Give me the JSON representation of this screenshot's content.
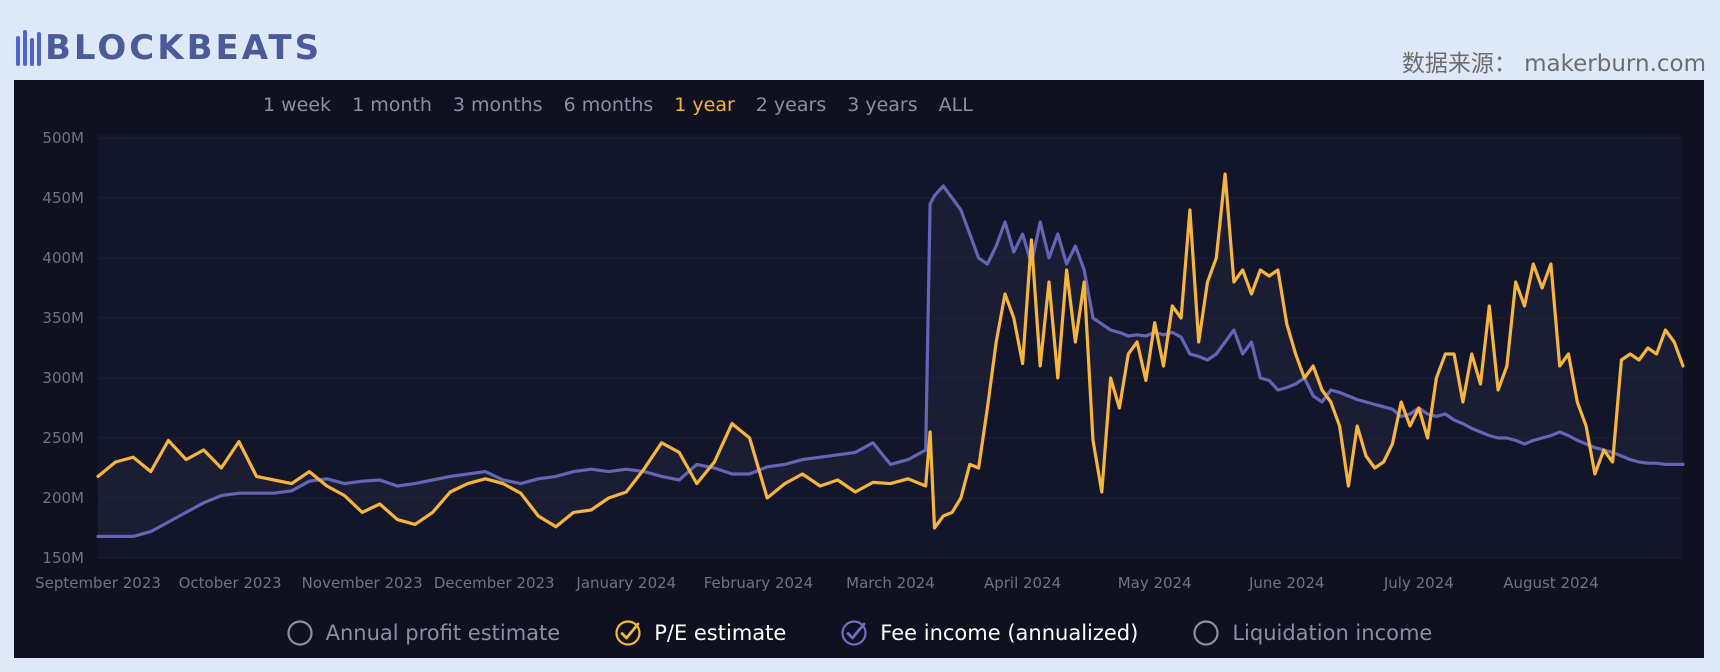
{
  "header": {
    "logo_text": "BLOCKBEATS",
    "source": "数据来源：  makerburn.com"
  },
  "ranges": [
    {
      "label": "1 week",
      "active": false
    },
    {
      "label": "1 month",
      "active": false
    },
    {
      "label": "3 months",
      "active": false
    },
    {
      "label": "6 months",
      "active": false
    },
    {
      "label": "1 year",
      "active": true
    },
    {
      "label": "2 years",
      "active": false
    },
    {
      "label": "3 years",
      "active": false
    },
    {
      "label": "ALL",
      "active": false
    }
  ],
  "legend": [
    {
      "label": "Annual profit estimate",
      "checked": false,
      "color": "#8a8fa3"
    },
    {
      "label": "P/E estimate",
      "checked": true,
      "color": "#f6b53d"
    },
    {
      "label": "Fee income (annualized)",
      "checked": true,
      "color": "#6f6fc4"
    },
    {
      "label": "Liquidation income",
      "checked": false,
      "color": "#8a8fa3"
    }
  ],
  "colors": {
    "pe": "#f6b53d",
    "fee": "#6465b5",
    "axis_text": "#6f7383",
    "grid": "#1c1f30"
  },
  "chart_data": {
    "type": "line",
    "x_tick_labels": [
      "September 2023",
      "October 2023",
      "November 2023",
      "December 2023",
      "January 2024",
      "February 2024",
      "March 2024",
      "April 2024",
      "May 2024",
      "June 2024",
      "July 2024",
      "August 2024"
    ],
    "y_tick_labels": [
      "150M",
      "200M",
      "250M",
      "300M",
      "350M",
      "400M",
      "450M",
      "500M"
    ],
    "ylim": [
      150,
      500
    ],
    "xlim": [
      0,
      360
    ],
    "y_unit": "M",
    "legend_placement": "bottom",
    "grid": true,
    "series": [
      {
        "name": "P/E estimate",
        "color": "#f6b53d",
        "x": [
          0,
          4,
          8,
          12,
          16,
          20,
          24,
          28,
          32,
          36,
          40,
          44,
          48,
          52,
          56,
          60,
          64,
          68,
          72,
          76,
          80,
          84,
          88,
          92,
          96,
          100,
          104,
          108,
          112,
          116,
          120,
          124,
          128,
          132,
          136,
          140,
          144,
          148,
          152,
          156,
          160,
          164,
          168,
          172,
          176,
          180,
          184,
          188,
          189,
          190,
          192,
          194,
          196,
          198,
          200,
          202,
          204,
          206,
          208,
          210,
          212,
          214,
          216,
          218,
          220,
          222,
          224,
          226,
          228,
          230,
          232,
          234,
          236,
          238,
          240,
          242,
          244,
          246,
          248,
          250,
          252,
          254,
          256,
          258,
          260,
          262,
          264,
          266,
          268,
          270,
          272,
          274,
          276,
          278,
          280,
          282,
          284,
          286,
          288,
          290,
          292,
          294,
          296,
          298,
          300,
          302,
          304,
          306,
          308,
          310,
          312,
          314,
          316,
          318,
          320,
          322,
          324,
          326,
          328,
          330,
          332,
          334,
          336,
          338,
          340,
          342,
          344,
          346,
          348,
          350,
          352,
          354,
          356,
          358,
          360
        ],
        "values": [
          218,
          230,
          234,
          222,
          248,
          232,
          240,
          225,
          247,
          218,
          215,
          212,
          222,
          210,
          202,
          188,
          195,
          182,
          178,
          188,
          205,
          212,
          216,
          212,
          204,
          185,
          176,
          188,
          190,
          200,
          205,
          224,
          246,
          238,
          212,
          230,
          262,
          250,
          200,
          212,
          220,
          210,
          215,
          205,
          213,
          212,
          216,
          210,
          255,
          175,
          185,
          188,
          200,
          228,
          225,
          275,
          330,
          370,
          350,
          312,
          415,
          310,
          380,
          300,
          390,
          330,
          380,
          248,
          205,
          300,
          275,
          320,
          330,
          298,
          346,
          310,
          360,
          350,
          440,
          330,
          380,
          400,
          470,
          380,
          390,
          370,
          390,
          385,
          390,
          345,
          320,
          300,
          310,
          290,
          280,
          260,
          210,
          260,
          235,
          225,
          230,
          245,
          280,
          260,
          275,
          250,
          300,
          320,
          320,
          280,
          320,
          295,
          360,
          290,
          310,
          380,
          360,
          395,
          375,
          395,
          310,
          320,
          280,
          260,
          220,
          240,
          230,
          315,
          320,
          315,
          325,
          320,
          340,
          330,
          310
        ],
        "checked": true
      },
      {
        "name": "Fee income (annualized)",
        "color": "#6465b5",
        "x": [
          0,
          4,
          8,
          12,
          16,
          20,
          24,
          28,
          32,
          36,
          40,
          44,
          48,
          52,
          56,
          60,
          64,
          68,
          72,
          76,
          80,
          84,
          88,
          92,
          96,
          100,
          104,
          108,
          112,
          116,
          120,
          124,
          128,
          132,
          136,
          140,
          144,
          148,
          152,
          156,
          160,
          164,
          168,
          172,
          176,
          180,
          184,
          188,
          189,
          190,
          192,
          194,
          196,
          198,
          200,
          202,
          204,
          206,
          208,
          210,
          212,
          214,
          216,
          218,
          220,
          222,
          224,
          226,
          228,
          230,
          232,
          234,
          236,
          238,
          240,
          242,
          244,
          246,
          248,
          250,
          252,
          254,
          256,
          258,
          260,
          262,
          264,
          266,
          268,
          270,
          272,
          274,
          276,
          278,
          280,
          282,
          284,
          286,
          288,
          290,
          292,
          294,
          296,
          298,
          300,
          302,
          304,
          306,
          308,
          310,
          312,
          314,
          316,
          318,
          320,
          322,
          324,
          326,
          328,
          330,
          332,
          334,
          336,
          338,
          340,
          342,
          344,
          346,
          348,
          350,
          352,
          354,
          356,
          358,
          360
        ],
        "values": [
          168,
          168,
          168,
          172,
          180,
          188,
          196,
          202,
          204,
          204,
          204,
          206,
          214,
          216,
          212,
          214,
          215,
          210,
          212,
          215,
          218,
          220,
          222,
          215,
          212,
          216,
          218,
          222,
          224,
          222,
          224,
          222,
          218,
          215,
          228,
          225,
          220,
          220,
          226,
          228,
          232,
          234,
          236,
          238,
          246,
          228,
          232,
          240,
          445,
          452,
          460,
          450,
          440,
          420,
          400,
          395,
          410,
          430,
          405,
          420,
          395,
          430,
          400,
          420,
          395,
          410,
          390,
          350,
          345,
          340,
          338,
          335,
          336,
          335,
          338,
          336,
          338,
          334,
          320,
          318,
          315,
          320,
          330,
          340,
          320,
          330,
          300,
          298,
          290,
          292,
          295,
          300,
          285,
          280,
          290,
          288,
          285,
          282,
          280,
          278,
          276,
          274,
          268,
          270,
          275,
          270,
          268,
          270,
          265,
          262,
          258,
          255,
          252,
          250,
          250,
          248,
          245,
          248,
          250,
          252,
          255,
          252,
          248,
          245,
          242,
          240,
          238,
          235,
          232,
          230,
          229,
          229,
          228,
          228,
          228
        ],
        "checked": true
      }
    ]
  }
}
